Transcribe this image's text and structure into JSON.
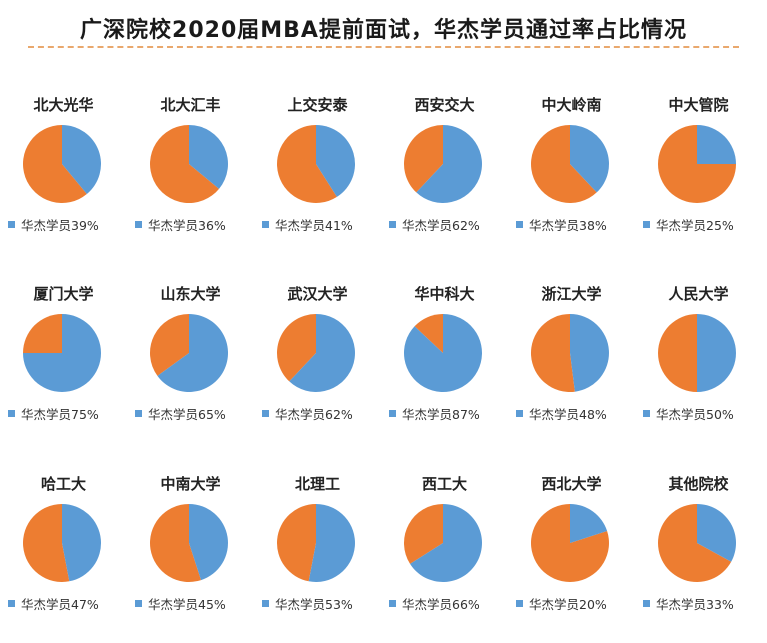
{
  "title": "广深院校2020届MBA提前面试，华杰学员通过率占比情况",
  "colors": {
    "share": "#5b9bd5",
    "rest": "#ed7d31",
    "accent": "#e9a86d"
  },
  "chart_data": {
    "type": "pie",
    "title": "广深院校2020届MBA提前面试，华杰学员通过率占比情况",
    "legend_label": "华杰学员",
    "legend_placement": "bottom",
    "charts": [
      {
        "name": "北大光华",
        "value": 39,
        "legend": "华杰学员39%"
      },
      {
        "name": "北大汇丰",
        "value": 36,
        "legend": "华杰学员36%"
      },
      {
        "name": "上交安泰",
        "value": 41,
        "legend": "华杰学员41%"
      },
      {
        "name": "西安交大",
        "value": 62,
        "legend": "华杰学员62%"
      },
      {
        "name": "中大岭南",
        "value": 38,
        "legend": "华杰学员38%"
      },
      {
        "name": "中大管院",
        "value": 25,
        "legend": "华杰学员25%"
      },
      {
        "name": "厦门大学",
        "value": 75,
        "legend": "华杰学员75%"
      },
      {
        "name": "山东大学",
        "value": 65,
        "legend": "华杰学员65%"
      },
      {
        "name": "武汉大学",
        "value": 62,
        "legend": "华杰学员62%"
      },
      {
        "name": "华中科大",
        "value": 87,
        "legend": "华杰学员87%"
      },
      {
        "name": "浙江大学",
        "value": 48,
        "legend": "华杰学员48%"
      },
      {
        "name": "人民大学",
        "value": 50,
        "legend": "华杰学员50%"
      },
      {
        "name": "哈工大",
        "value": 47,
        "legend": "华杰学员47%"
      },
      {
        "name": "中南大学",
        "value": 45,
        "legend": "华杰学员45%"
      },
      {
        "name": "北理工",
        "value": 53,
        "legend": "华杰学员53%"
      },
      {
        "name": "西工大",
        "value": 66,
        "legend": "华杰学员66%"
      },
      {
        "name": "西北大学",
        "value": 20,
        "legend": "华杰学员20%"
      },
      {
        "name": "其他院校",
        "value": 33,
        "legend": "华杰学员33%"
      }
    ]
  }
}
